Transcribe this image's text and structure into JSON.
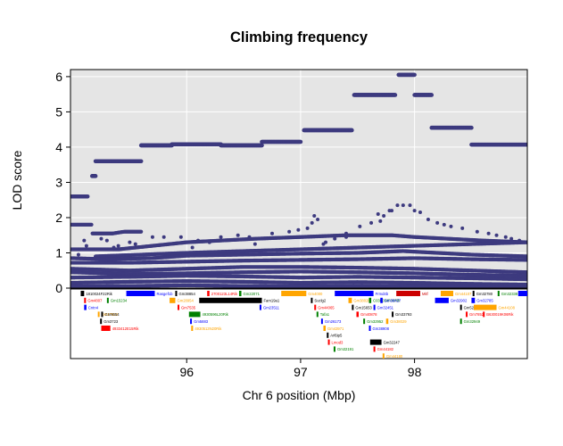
{
  "chart_data": {
    "type": "scatter",
    "title": "Climbing frequency",
    "xlabel": "Chr 6 position (Mbp)",
    "ylabel": "LOD score",
    "xlim": [
      94.98,
      98.99
    ],
    "ylim": [
      0,
      6.2
    ],
    "x_ticks": [
      96,
      97,
      98
    ],
    "y_ticks": [
      0,
      1,
      2,
      3,
      4,
      5,
      6
    ],
    "grid": true,
    "point_color": "#3d3a7f",
    "panel_background": "#e5e5e5",
    "grid_color": "#ffffff",
    "top_lod_series": [
      {
        "x0": 94.98,
        "x1": 95.13,
        "y": 2.6
      },
      {
        "x0": 95.17,
        "x1": 95.2,
        "y": 3.18
      },
      {
        "x0": 95.2,
        "x1": 95.6,
        "y": 3.6
      },
      {
        "x0": 95.6,
        "x1": 95.87,
        "y": 4.05
      },
      {
        "x0": 95.87,
        "x1": 96.3,
        "y": 4.08
      },
      {
        "x0": 96.3,
        "x1": 96.66,
        "y": 4.05
      },
      {
        "x0": 96.66,
        "x1": 97.0,
        "y": 4.15
      },
      {
        "x0": 97.03,
        "x1": 97.45,
        "y": 4.48
      },
      {
        "x0": 97.47,
        "x1": 97.83,
        "y": 5.48
      },
      {
        "x0": 97.86,
        "x1": 98.0,
        "y": 6.05
      },
      {
        "x0": 98.0,
        "x1": 98.15,
        "y": 5.48
      },
      {
        "x0": 98.15,
        "x1": 98.5,
        "y": 4.55
      },
      {
        "x0": 98.5,
        "x1": 98.99,
        "y": 4.07
      }
    ],
    "band_series": [
      {
        "name": "",
        "points": [
          [
            94.98,
            1.8
          ],
          [
            95.17,
            1.8
          ],
          [
            95.17,
            1.55
          ],
          [
            95.35,
            1.55
          ],
          [
            95.45,
            1.6
          ],
          [
            95.6,
            1.6
          ]
        ]
      },
      {
        "name": "",
        "points": [
          [
            95.2,
            0.9
          ],
          [
            95.6,
            0.95
          ],
          [
            96.0,
            1.0
          ],
          [
            96.5,
            1.05
          ],
          [
            97.0,
            1.1
          ],
          [
            97.5,
            1.15
          ],
          [
            98.0,
            1.2
          ],
          [
            98.5,
            1.25
          ],
          [
            98.99,
            1.3
          ]
        ]
      },
      {
        "name": "",
        "points": [
          [
            94.98,
            1.1
          ],
          [
            95.4,
            1.1
          ],
          [
            95.7,
            1.2
          ],
          [
            96.0,
            1.3
          ],
          [
            96.3,
            1.35
          ],
          [
            96.6,
            1.4
          ],
          [
            97.0,
            1.45
          ],
          [
            97.4,
            1.5
          ],
          [
            97.8,
            1.5
          ],
          [
            98.0,
            1.45
          ],
          [
            98.3,
            1.4
          ],
          [
            98.6,
            1.35
          ],
          [
            98.99,
            1.3
          ]
        ]
      },
      {
        "name": "",
        "points": [
          [
            94.98,
            0.85
          ],
          [
            95.3,
            0.82
          ],
          [
            95.7,
            0.85
          ],
          [
            96.0,
            0.92
          ],
          [
            96.5,
            0.95
          ],
          [
            97.0,
            0.98
          ],
          [
            97.5,
            1.0
          ],
          [
            97.9,
            1.05
          ],
          [
            98.2,
            1.0
          ],
          [
            98.5,
            0.95
          ],
          [
            98.99,
            0.9
          ]
        ]
      },
      {
        "name": "",
        "points": [
          [
            94.98,
            0.72
          ],
          [
            95.5,
            0.72
          ],
          [
            96.0,
            0.75
          ],
          [
            96.5,
            0.78
          ],
          [
            97.0,
            0.8
          ],
          [
            97.5,
            0.82
          ],
          [
            98.0,
            0.85
          ],
          [
            98.5,
            0.82
          ],
          [
            98.99,
            0.8
          ]
        ]
      },
      {
        "name": "",
        "points": [
          [
            94.98,
            0.55
          ],
          [
            95.5,
            0.5
          ],
          [
            96.0,
            0.55
          ],
          [
            96.5,
            0.6
          ],
          [
            97.0,
            0.6
          ],
          [
            97.5,
            0.58
          ],
          [
            98.0,
            0.55
          ],
          [
            98.5,
            0.5
          ],
          [
            98.99,
            0.45
          ]
        ]
      },
      {
        "name": "",
        "points": [
          [
            94.98,
            0.45
          ],
          [
            95.5,
            0.4
          ],
          [
            96.0,
            0.42
          ],
          [
            96.5,
            0.45
          ],
          [
            97.0,
            0.47
          ],
          [
            97.5,
            0.45
          ],
          [
            98.0,
            0.42
          ],
          [
            98.5,
            0.38
          ],
          [
            98.99,
            0.35
          ]
        ]
      },
      {
        "name": "",
        "points": [
          [
            94.98,
            0.3
          ],
          [
            95.5,
            0.32
          ],
          [
            96.0,
            0.35
          ],
          [
            96.5,
            0.33
          ],
          [
            97.0,
            0.3
          ],
          [
            97.5,
            0.32
          ],
          [
            98.0,
            0.3
          ],
          [
            98.5,
            0.28
          ],
          [
            98.99,
            0.25
          ]
        ]
      },
      {
        "name": "",
        "points": [
          [
            94.98,
            0.15
          ],
          [
            95.5,
            0.18
          ],
          [
            96.0,
            0.2
          ],
          [
            96.5,
            0.18
          ],
          [
            97.0,
            0.15
          ],
          [
            97.5,
            0.17
          ],
          [
            98.0,
            0.15
          ],
          [
            98.5,
            0.12
          ],
          [
            98.99,
            0.1
          ]
        ]
      },
      {
        "name": "",
        "points": [
          [
            94.98,
            0.05
          ],
          [
            95.5,
            0.06
          ],
          [
            96.0,
            0.08
          ],
          [
            96.5,
            0.06
          ],
          [
            97.0,
            0.05
          ],
          [
            97.5,
            0.06
          ],
          [
            98.0,
            0.05
          ],
          [
            98.5,
            0.04
          ],
          [
            98.99,
            0.03
          ]
        ]
      }
    ],
    "scattered_points": [
      [
        95.03,
        1.1
      ],
      [
        95.05,
        0.95
      ],
      [
        95.1,
        1.35
      ],
      [
        95.12,
        1.2
      ],
      [
        95.25,
        1.4
      ],
      [
        95.3,
        1.35
      ],
      [
        95.36,
        1.15
      ],
      [
        95.4,
        1.2
      ],
      [
        95.5,
        1.3
      ],
      [
        95.55,
        1.25
      ],
      [
        95.7,
        1.45
      ],
      [
        95.8,
        1.45
      ],
      [
        95.95,
        1.45
      ],
      [
        96.05,
        1.15
      ],
      [
        96.1,
        1.35
      ],
      [
        96.2,
        1.3
      ],
      [
        96.3,
        1.45
      ],
      [
        96.45,
        1.5
      ],
      [
        96.55,
        1.45
      ],
      [
        96.75,
        1.55
      ],
      [
        96.9,
        1.6
      ],
      [
        96.98,
        1.65
      ],
      [
        97.06,
        1.7
      ],
      [
        97.15,
        1.95
      ],
      [
        97.12,
        2.05
      ],
      [
        97.1,
        1.85
      ],
      [
        97.2,
        1.25
      ],
      [
        97.3,
        1.4
      ],
      [
        97.4,
        1.55
      ],
      [
        97.52,
        1.75
      ],
      [
        97.62,
        1.85
      ],
      [
        97.7,
        1.9
      ],
      [
        97.73,
        2.05
      ],
      [
        97.78,
        2.2
      ],
      [
        97.85,
        2.35
      ],
      [
        97.9,
        2.35
      ],
      [
        97.96,
        2.35
      ],
      [
        98.0,
        2.2
      ],
      [
        98.05,
        2.15
      ],
      [
        98.12,
        1.95
      ],
      [
        98.2,
        1.85
      ],
      [
        98.26,
        1.8
      ],
      [
        98.32,
        1.75
      ],
      [
        98.42,
        1.7
      ],
      [
        98.55,
        1.6
      ],
      [
        98.65,
        1.55
      ],
      [
        98.72,
        1.5
      ],
      [
        98.8,
        1.45
      ],
      [
        98.85,
        1.4
      ],
      [
        98.92,
        1.35
      ],
      [
        97.68,
        2.1
      ],
      [
        97.8,
        2.2
      ],
      [
        97.4,
        1.45
      ],
      [
        97.22,
        1.3
      ],
      [
        96.6,
        1.25
      ]
    ],
    "genes": [
      {
        "label": "1810024F22Rik",
        "color": "#000000",
        "start": 95.07,
        "end": 95.1,
        "row": 0
      },
      {
        "label": "Gm4807",
        "color": "#ff0000",
        "start": 95.1,
        "end": 95.1,
        "row": 1
      },
      {
        "label": "Cntn4",
        "color": "#0000ff",
        "start": 95.1,
        "end": 95.12,
        "row": 2
      },
      {
        "label": "Gm17622",
        "color": "#ffa500",
        "start": 95.22,
        "end": 95.23,
        "row": 3
      },
      {
        "label": "Gm3723",
        "color": "#000000",
        "start": 95.24,
        "end": 95.25,
        "row": 4
      },
      {
        "label": "4933412E15Rik",
        "color": "#ff0000",
        "start": 95.25,
        "end": 95.33,
        "row": 5
      },
      {
        "label": "Gm15234",
        "color": "#008000",
        "start": 95.3,
        "end": 95.31,
        "row": 1
      },
      {
        "label": "Gm8654",
        "color": "#000000",
        "start": 95.25,
        "end": 95.26,
        "row": 3
      },
      {
        "label": "Rasgef1b",
        "color": "#0000ff",
        "start": 95.47,
        "end": 95.72,
        "row": 0
      },
      {
        "label": "Gm7535",
        "color": "#ff0000",
        "start": 95.92,
        "end": 95.93,
        "row": 2
      },
      {
        "label": "Gm38854",
        "color": "#000000",
        "start": 95.9,
        "end": 95.91,
        "row": 0
      },
      {
        "label": "Gm28954",
        "color": "#ffa500",
        "start": 95.85,
        "end": 95.9,
        "row": 1
      },
      {
        "label": "4930596L20Rik",
        "color": "#008000",
        "start": 96.02,
        "end": 96.12,
        "row": 3
      },
      {
        "label": "Gm5883",
        "color": "#0000ff",
        "start": 96.03,
        "end": 96.04,
        "row": 4
      },
      {
        "label": "4930513N20Rik",
        "color": "#ffa500",
        "start": 96.04,
        "end": 96.05,
        "row": 5
      },
      {
        "label": "Fam19a1",
        "color": "#000000",
        "start": 96.11,
        "end": 96.66,
        "row": 1
      },
      {
        "label": "2700123L14Rik",
        "color": "#ff0000",
        "start": 96.18,
        "end": 96.2,
        "row": 0
      },
      {
        "label": "Gm22071",
        "color": "#008000",
        "start": 96.46,
        "end": 96.48,
        "row": 0
      },
      {
        "label": "Gm23511",
        "color": "#0000ff",
        "start": 96.64,
        "end": 96.65,
        "row": 2
      },
      {
        "label": "Gm4000",
        "color": "#ffa500",
        "start": 96.83,
        "end": 97.05,
        "row": 0
      },
      {
        "label": "Suclg2",
        "color": "#000000",
        "start": 97.09,
        "end": 97.1,
        "row": 1
      },
      {
        "label": "Gm44065",
        "color": "#ff0000",
        "start": 97.12,
        "end": 97.13,
        "row": 2
      },
      {
        "label": "Tafa1",
        "color": "#008000",
        "start": 97.14,
        "end": 97.15,
        "row": 3
      },
      {
        "label": "Gm26173",
        "color": "#0000ff",
        "start": 97.18,
        "end": 97.19,
        "row": 4
      },
      {
        "label": "Gm43971",
        "color": "#ffa500",
        "start": 97.2,
        "end": 97.22,
        "row": 5
      },
      {
        "label": "Arl6ip5",
        "color": "#000000",
        "start": 97.23,
        "end": 97.24,
        "row": 6
      },
      {
        "label": "Lmod3",
        "color": "#ff0000",
        "start": 97.24,
        "end": 97.25,
        "row": 7
      },
      {
        "label": "Gm32191",
        "color": "#008000",
        "start": 97.29,
        "end": 97.3,
        "row": 8
      },
      {
        "label": "Frmd4b",
        "color": "#0000ff",
        "start": 97.3,
        "end": 97.64,
        "row": 0
      },
      {
        "label": "Gm38026",
        "color": "#ffa500",
        "start": 97.42,
        "end": 97.45,
        "row": 1
      },
      {
        "label": "Gm15653",
        "color": "#000000",
        "start": 97.45,
        "end": 97.46,
        "row": 2
      },
      {
        "label": "Gm40878",
        "color": "#ff0000",
        "start": 97.49,
        "end": 97.51,
        "row": 3
      },
      {
        "label": "Gm32952",
        "color": "#008000",
        "start": 97.55,
        "end": 97.56,
        "row": 4
      },
      {
        "label": "Gm38908",
        "color": "#0000ff",
        "start": 97.6,
        "end": 97.61,
        "row": 5
      },
      {
        "label": "Gm32247",
        "color": "#000000",
        "start": 97.61,
        "end": 97.71,
        "row": 7
      },
      {
        "label": "Gm44182",
        "color": "#ff0000",
        "start": 97.64,
        "end": 97.65,
        "row": 8
      },
      {
        "label": "Gm44180",
        "color": "#ffa500",
        "start": 97.72,
        "end": 97.73,
        "row": 9
      },
      {
        "label": "C030034F09Rik",
        "color": "#008000",
        "start": 97.6,
        "end": 97.62,
        "row": 1
      },
      {
        "label": "Gm38427",
        "color": "#0000ff",
        "start": 97.7,
        "end": 97.72,
        "row": 1
      },
      {
        "label": "Gm32451",
        "color": "#0000ff",
        "start": 97.64,
        "end": 97.65,
        "row": 2
      },
      {
        "label": "Gm38029",
        "color": "#ffa500",
        "start": 97.75,
        "end": 97.77,
        "row": 4
      },
      {
        "label": "Gm33793",
        "color": "#000000",
        "start": 97.8,
        "end": 97.81,
        "row": 3
      },
      {
        "label": "Mitf",
        "color": "#cc0000",
        "start": 97.84,
        "end": 98.05,
        "row": 0
      },
      {
        "label": "Gm44107",
        "color": "#ffa500",
        "start": 98.23,
        "end": 98.34,
        "row": 0
      },
      {
        "label": "Gm32902",
        "color": "#0000ff",
        "start": 98.18,
        "end": 98.3,
        "row": 1
      },
      {
        "label": "Gm32780",
        "color": "#000000",
        "start": 98.51,
        "end": 98.52,
        "row": 0
      },
      {
        "label": "Gm32338",
        "color": "#008000",
        "start": 98.73,
        "end": 98.74,
        "row": 0
      },
      {
        "label": "Gm32785",
        "color": "#0000ff",
        "start": 98.5,
        "end": 98.53,
        "row": 1
      },
      {
        "label": "Gm52535",
        "color": "#000000",
        "start": 98.4,
        "end": 98.41,
        "row": 2
      },
      {
        "label": "Gm7852",
        "color": "#ff0000",
        "start": 98.45,
        "end": 98.46,
        "row": 3
      },
      {
        "label": "Gm32949",
        "color": "#008000",
        "start": 98.4,
        "end": 98.41,
        "row": 4
      },
      {
        "label": "Gm44108",
        "color": "#ffa500",
        "start": 98.52,
        "end": 98.72,
        "row": 2
      },
      {
        "label": "B630019K06Rik",
        "color": "#ff0000",
        "start": 98.6,
        "end": 98.61,
        "row": 3
      },
      {
        "label": "Gm32",
        "color": "#0000ff",
        "start": 98.91,
        "end": 98.99,
        "row": 0
      }
    ]
  }
}
